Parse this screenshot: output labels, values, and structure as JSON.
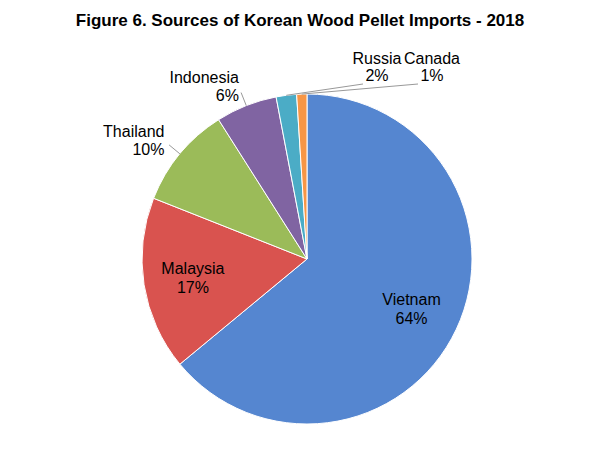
{
  "chart_data": {
    "type": "pie",
    "title": "Figure 6. Sources of Korean Wood Pellet Imports - 2018",
    "categories": [
      "Vietnam",
      "Malaysia",
      "Thailand",
      "Indonesia",
      "Russia",
      "Canada"
    ],
    "values": [
      64,
      17,
      10,
      6,
      2,
      1
    ],
    "value_labels": [
      "64%",
      "17%",
      "10%",
      "6%",
      "2%",
      "1%"
    ],
    "colors": [
      "#5586d0",
      "#d9534f",
      "#9bbb59",
      "#8064a2",
      "#4bacc6",
      "#f79646"
    ],
    "data_labels": true
  }
}
